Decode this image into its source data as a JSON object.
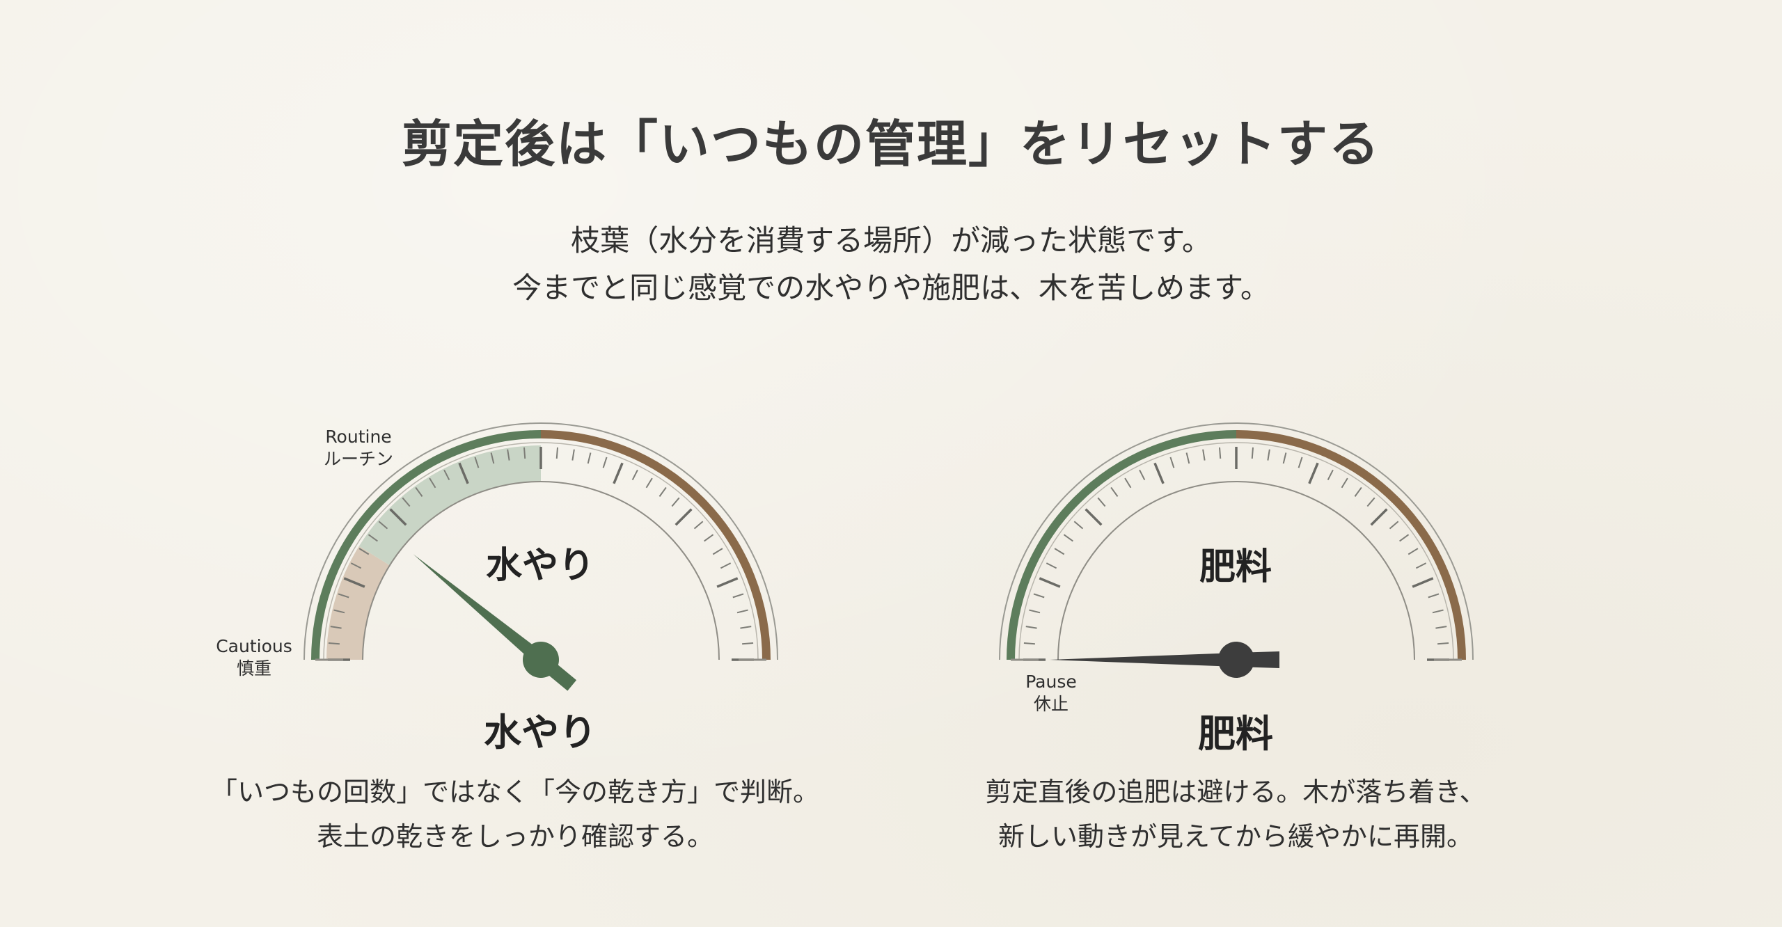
{
  "header": {
    "title": "剪定後は「いつもの管理」をリセットする",
    "subtitle_line1": "枝葉（水分を消費する場所）が減った状態です。",
    "subtitle_line2": "今までと同じ感覚での水やりや施肥は、木を苦しめます。"
  },
  "gauges": [
    {
      "label_center": "水やり",
      "label_below": "水やり",
      "needle_position": 0.22,
      "label_routine_en": "Routine",
      "label_routine_ja": "ルーチン",
      "label_cautious_en": "Cautious",
      "label_cautious_ja": "慎重",
      "caption_line1": "「いつもの回数」ではなく「今の乾き方」で判断。",
      "caption_line2": "表土の乾きをしっかり確認する。"
    },
    {
      "label_center": "肥料",
      "label_below": "肥料",
      "needle_position": 0.0,
      "label_pause_en": "Pause",
      "label_pause_ja": "休止",
      "caption_line1": "剪定直後の追肥は避ける。木が落ち着き、",
      "caption_line2": "新しい動きが見えてから緩やかに再開。"
    }
  ],
  "colors": {
    "green_arc": "#5d7d5c",
    "brown_arc": "#8a6a4a",
    "needle_green": "#4f6f50",
    "needle_dark": "#3d3d3d",
    "highlight_green": "#c9d5c6",
    "highlight_tan": "#d9c9b8",
    "background": "#f4f1e9"
  }
}
